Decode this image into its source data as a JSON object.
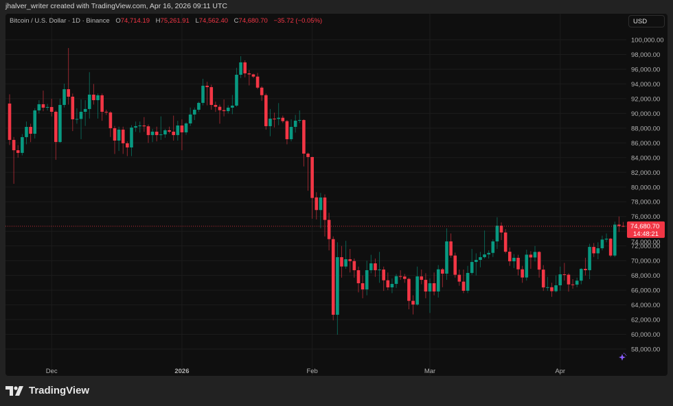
{
  "credit": "jhalver_writer created with TradingView.com, Apr 16, 2026 09:11 UTC",
  "legend": {
    "symbol": "Bitcoin / U.S. Dollar · 1D · Binance",
    "o_label": "O",
    "o": "74,714.19",
    "h_label": "H",
    "h": "75,261.91",
    "l_label": "L",
    "l": "74,562.40",
    "c_label": "C",
    "c": "74,680.70",
    "change": "−35.72 (−0.05%)"
  },
  "currency_button": "USD",
  "last_price": {
    "price": "74,680.70",
    "countdown": "14:48:21"
  },
  "footer": {
    "brand": "TradingView"
  },
  "colors": {
    "up": "#089981",
    "down": "#f23645",
    "background": "#0f0f0f",
    "grid": "#1c1c1c"
  },
  "icons": {
    "logo": "tradingview-logo-icon",
    "sparkle": "sparkle-icon"
  },
  "chart_data": {
    "type": "candlestick",
    "title": "Bitcoin / U.S. Dollar · 1D · Binance",
    "ylim": [
      56000,
      101000
    ],
    "yticks": [
      "100,000.00",
      "98,000.00",
      "96,000.00",
      "94,000.00",
      "92,000.00",
      "90,000.00",
      "88,000.00",
      "86,000.00",
      "84,000.00",
      "82,000.00",
      "80,000.00",
      "78,000.00",
      "76,000.00",
      "74,000.00",
      "72,000.00",
      "70,000.00",
      "68,000.00",
      "66,000.00",
      "64,000.00",
      "62,000.00",
      "60,000.00",
      "58,000.00"
    ],
    "ytick_values": [
      100000,
      98000,
      96000,
      94000,
      92000,
      90000,
      88000,
      86000,
      84000,
      82000,
      80000,
      78000,
      76000,
      74000,
      72000,
      70000,
      68000,
      66000,
      64000,
      62000,
      60000,
      58000
    ],
    "xticks": [
      {
        "label": "Dec",
        "date": "2025-12-01"
      },
      {
        "label": "2026",
        "date": "2026-01-01"
      },
      {
        "label": "Feb",
        "date": "2026-02-01"
      },
      {
        "label": "Mar",
        "date": "2026-03-01"
      },
      {
        "label": "Apr",
        "date": "2026-04-01"
      }
    ],
    "last_close": 74680.7,
    "grid": true,
    "columns": [
      "date",
      "open",
      "high",
      "low",
      "close"
    ],
    "candles": [
      [
        "2025-11-21",
        91340,
        92600,
        85700,
        86400
      ],
      [
        "2025-11-22",
        86400,
        86800,
        80440,
        85000
      ],
      [
        "2025-11-23",
        85000,
        85700,
        84000,
        84640
      ],
      [
        "2025-11-24",
        84640,
        87200,
        84300,
        86780
      ],
      [
        "2025-11-25",
        86780,
        88900,
        85800,
        88170
      ],
      [
        "2025-11-26",
        88170,
        88600,
        86100,
        87240
      ],
      [
        "2025-11-27",
        87240,
        90700,
        86600,
        90410
      ],
      [
        "2025-11-28",
        90410,
        91800,
        90000,
        91250
      ],
      [
        "2025-11-29",
        91250,
        93100,
        90300,
        90780
      ],
      [
        "2025-11-30",
        90780,
        91300,
        90400,
        90870
      ],
      [
        "2025-12-01",
        90870,
        92000,
        89600,
        90220
      ],
      [
        "2025-12-02",
        90220,
        90400,
        83700,
        86120
      ],
      [
        "2025-12-03",
        86120,
        92000,
        86000,
        91150
      ],
      [
        "2025-12-04",
        91150,
        94040,
        90800,
        93290
      ],
      [
        "2025-12-05",
        93290,
        98880,
        91200,
        92270
      ],
      [
        "2025-12-06",
        92270,
        92700,
        87600,
        89200
      ],
      [
        "2025-12-07",
        89200,
        90700,
        88600,
        89250
      ],
      [
        "2025-12-08",
        89250,
        91900,
        86500,
        90220
      ],
      [
        "2025-12-09",
        90220,
        91800,
        88300,
        90600
      ],
      [
        "2025-12-10",
        90600,
        95600,
        89300,
        92550
      ],
      [
        "2025-12-11",
        92550,
        94000,
        91200,
        91800
      ],
      [
        "2025-12-12",
        91800,
        92700,
        89300,
        92460
      ],
      [
        "2025-12-13",
        92460,
        92700,
        89000,
        90220
      ],
      [
        "2025-12-14",
        90220,
        90500,
        89800,
        90130
      ],
      [
        "2025-12-15",
        90130,
        90300,
        86800,
        87990
      ],
      [
        "2025-12-16",
        87990,
        88300,
        84500,
        86310
      ],
      [
        "2025-12-17",
        86310,
        88200,
        84900,
        87800
      ],
      [
        "2025-12-18",
        87800,
        88200,
        84500,
        85940
      ],
      [
        "2025-12-19",
        85940,
        86200,
        84200,
        85380
      ],
      [
        "2025-12-20",
        85380,
        88400,
        84200,
        88080
      ],
      [
        "2025-12-21",
        88080,
        88900,
        87500,
        88270
      ],
      [
        "2025-12-22",
        88270,
        88900,
        87400,
        88360
      ],
      [
        "2025-12-23",
        88360,
        89500,
        87500,
        88250
      ],
      [
        "2025-12-24",
        88250,
        88500,
        86000,
        87060
      ],
      [
        "2025-12-25",
        87060,
        87900,
        86100,
        87520
      ],
      [
        "2025-12-26",
        87520,
        88200,
        86200,
        87060
      ],
      [
        "2025-12-27",
        87060,
        89600,
        86400,
        87150
      ],
      [
        "2025-12-28",
        87150,
        87900,
        86700,
        87710
      ],
      [
        "2025-12-29",
        87710,
        88200,
        87300,
        87520
      ],
      [
        "2025-12-30",
        87520,
        89700,
        86300,
        87060
      ],
      [
        "2025-12-31",
        87060,
        89000,
        86300,
        88360
      ],
      [
        "2026-01-01",
        88360,
        89200,
        85000,
        87430
      ],
      [
        "2026-01-02",
        87430,
        88800,
        87100,
        88640
      ],
      [
        "2026-01-03",
        88640,
        90800,
        88300,
        89850
      ],
      [
        "2026-01-04",
        89850,
        90800,
        89100,
        90500
      ],
      [
        "2026-01-05",
        90500,
        91600,
        90200,
        91430
      ],
      [
        "2026-01-06",
        91430,
        94700,
        91100,
        93760
      ],
      [
        "2026-01-07",
        93760,
        94300,
        91100,
        93570
      ],
      [
        "2026-01-08",
        93570,
        93900,
        90500,
        91150
      ],
      [
        "2026-01-09",
        91150,
        91600,
        90200,
        90900
      ],
      [
        "2026-01-10",
        90900,
        91200,
        88600,
        90440
      ],
      [
        "2026-01-11",
        90440,
        91900,
        89600,
        90310
      ],
      [
        "2026-01-12",
        90310,
        91100,
        90000,
        90780
      ],
      [
        "2026-01-13",
        90780,
        92500,
        89900,
        91060
      ],
      [
        "2026-01-14",
        91060,
        96200,
        90900,
        95250
      ],
      [
        "2026-01-15",
        95250,
        97770,
        94800,
        96930
      ],
      [
        "2026-01-16",
        96930,
        97200,
        94900,
        95440
      ],
      [
        "2026-01-17",
        95440,
        95900,
        93800,
        95300
      ],
      [
        "2026-01-18",
        95300,
        95400,
        94800,
        95000
      ],
      [
        "2026-01-19",
        95000,
        95500,
        93300,
        93500
      ],
      [
        "2026-01-20",
        93500,
        93700,
        91700,
        92480
      ],
      [
        "2026-01-21",
        92480,
        92700,
        87800,
        88270
      ],
      [
        "2026-01-22",
        88270,
        90600,
        86900,
        89290
      ],
      [
        "2026-01-23",
        89290,
        90100,
        88100,
        89250
      ],
      [
        "2026-01-24",
        89250,
        91400,
        88400,
        89410
      ],
      [
        "2026-01-25",
        89410,
        89700,
        88700,
        88950
      ],
      [
        "2026-01-26",
        88950,
        89100,
        85800,
        86500
      ],
      [
        "2026-01-27",
        86500,
        89200,
        86200,
        88170
      ],
      [
        "2026-01-28",
        88170,
        89800,
        87400,
        89010
      ],
      [
        "2026-01-29",
        89010,
        90400,
        88700,
        89100
      ],
      [
        "2026-01-30",
        89100,
        89200,
        82800,
        84540
      ],
      [
        "2026-01-31",
        84540,
        84700,
        79500,
        84080
      ],
      [
        "2026-02-01",
        84080,
        84100,
        75700,
        78520
      ],
      [
        "2026-02-02",
        78600,
        79300,
        75600,
        76880
      ],
      [
        "2026-02-03",
        76880,
        79200,
        74420,
        78580
      ],
      [
        "2026-02-04",
        78580,
        79000,
        73300,
        75540
      ],
      [
        "2026-02-05",
        75540,
        76500,
        71400,
        72930
      ],
      [
        "2026-02-06",
        72930,
        73300,
        61900,
        62660
      ],
      [
        "2026-02-07",
        62660,
        72500,
        59960,
        70480
      ],
      [
        "2026-02-08",
        70480,
        72000,
        67700,
        69210
      ],
      [
        "2026-02-09",
        69210,
        72700,
        68900,
        70200
      ],
      [
        "2026-02-10",
        70200,
        71600,
        68400,
        69950
      ],
      [
        "2026-02-11",
        69950,
        70300,
        67700,
        68710
      ],
      [
        "2026-02-12",
        68710,
        69200,
        65700,
        66940
      ],
      [
        "2026-02-13",
        66940,
        68000,
        64900,
        66100
      ],
      [
        "2026-02-14",
        66100,
        70000,
        65300,
        68710
      ],
      [
        "2026-02-15",
        68710,
        70800,
        68300,
        69640
      ],
      [
        "2026-02-16",
        69640,
        70300,
        67800,
        68710
      ],
      [
        "2026-02-17",
        68710,
        71200,
        67000,
        68800
      ],
      [
        "2026-02-18",
        68800,
        69200,
        65900,
        67340
      ],
      [
        "2026-02-19",
        67340,
        68400,
        66000,
        66380
      ],
      [
        "2026-02-20",
        66380,
        67600,
        65600,
        66850
      ],
      [
        "2026-02-21",
        66850,
        68200,
        66300,
        67900
      ],
      [
        "2026-02-22",
        67900,
        68700,
        67400,
        67850
      ],
      [
        "2026-02-23",
        67850,
        68200,
        67000,
        67530
      ],
      [
        "2026-02-24",
        67530,
        67700,
        63400,
        64550
      ],
      [
        "2026-02-25",
        64550,
        65300,
        62700,
        64050
      ],
      [
        "2026-02-26",
        64050,
        69200,
        63900,
        67870
      ],
      [
        "2026-02-27",
        67870,
        68800,
        66800,
        67400
      ],
      [
        "2026-02-28",
        67400,
        68300,
        64900,
        65820
      ],
      [
        "2026-03-01",
        65820,
        67600,
        62900,
        66940
      ],
      [
        "2026-03-02",
        66940,
        68400,
        65300,
        65820
      ],
      [
        "2026-03-03",
        65820,
        69400,
        65000,
        68830
      ],
      [
        "2026-03-04",
        68830,
        69000,
        66400,
        68240
      ],
      [
        "2026-03-05",
        68240,
        74400,
        67400,
        72620
      ],
      [
        "2026-03-06",
        72620,
        73700,
        70400,
        70700
      ],
      [
        "2026-03-07",
        70700,
        71100,
        67700,
        68090
      ],
      [
        "2026-03-08",
        68090,
        68800,
        66600,
        67160
      ],
      [
        "2026-03-09",
        67160,
        68800,
        65600,
        65920
      ],
      [
        "2026-03-10",
        65920,
        69300,
        65600,
        68340
      ],
      [
        "2026-03-11",
        68340,
        71600,
        68100,
        69830
      ],
      [
        "2026-03-12",
        69830,
        71000,
        68000,
        70110
      ],
      [
        "2026-03-13",
        70110,
        71200,
        69100,
        70480
      ],
      [
        "2026-03-14",
        70480,
        74100,
        70300,
        70850
      ],
      [
        "2026-03-15",
        70850,
        71400,
        70300,
        71060
      ],
      [
        "2026-03-16",
        71060,
        72900,
        70500,
        72620
      ],
      [
        "2026-03-17",
        72620,
        75900,
        71600,
        74760
      ],
      [
        "2026-03-18",
        74760,
        75200,
        72800,
        73830
      ],
      [
        "2026-03-19",
        73830,
        74300,
        71000,
        71220
      ],
      [
        "2026-03-20",
        71220,
        71800,
        69300,
        69920
      ],
      [
        "2026-03-21",
        69920,
        70900,
        69000,
        70390
      ],
      [
        "2026-03-22",
        70390,
        70800,
        68000,
        68830
      ],
      [
        "2026-03-23",
        68830,
        69300,
        67000,
        67720
      ],
      [
        "2026-03-24",
        67720,
        71500,
        67300,
        70820
      ],
      [
        "2026-03-25",
        70820,
        71300,
        68900,
        70440
      ],
      [
        "2026-03-26",
        70440,
        72000,
        69900,
        71190
      ],
      [
        "2026-03-27",
        71190,
        71300,
        67700,
        68790
      ],
      [
        "2026-03-28",
        68790,
        69400,
        65900,
        66370
      ],
      [
        "2026-03-29",
        66370,
        67800,
        65900,
        66400
      ],
      [
        "2026-03-30",
        66400,
        67000,
        65100,
        65860
      ],
      [
        "2026-03-31",
        65860,
        68000,
        65700,
        66660
      ],
      [
        "2026-04-01",
        66660,
        69200,
        65900,
        68150
      ],
      [
        "2026-04-02",
        68150,
        69700,
        67300,
        68100
      ],
      [
        "2026-04-03",
        68100,
        68300,
        65800,
        66780
      ],
      [
        "2026-04-04",
        66780,
        67500,
        66200,
        66750
      ],
      [
        "2026-04-05",
        66750,
        67700,
        66400,
        67290
      ],
      [
        "2026-04-06",
        67290,
        69000,
        66800,
        68890
      ],
      [
        "2026-04-07",
        68890,
        70400,
        68000,
        68710
      ],
      [
        "2026-04-08",
        68710,
        72300,
        67500,
        71870
      ],
      [
        "2026-04-09",
        71870,
        72400,
        70500,
        71000
      ],
      [
        "2026-04-10",
        71000,
        72500,
        70200,
        71690
      ],
      [
        "2026-04-11",
        71690,
        73400,
        71400,
        72870
      ],
      [
        "2026-04-12",
        72870,
        73700,
        72500,
        72990
      ],
      [
        "2026-04-13",
        72990,
        73100,
        70500,
        70700
      ],
      [
        "2026-04-14",
        70700,
        75300,
        70500,
        74900
      ],
      [
        "2026-04-15",
        74900,
        76000,
        73900,
        74714.19
      ],
      [
        "2026-04-16",
        74714.19,
        75261.91,
        74562.4,
        74680.7
      ]
    ]
  }
}
